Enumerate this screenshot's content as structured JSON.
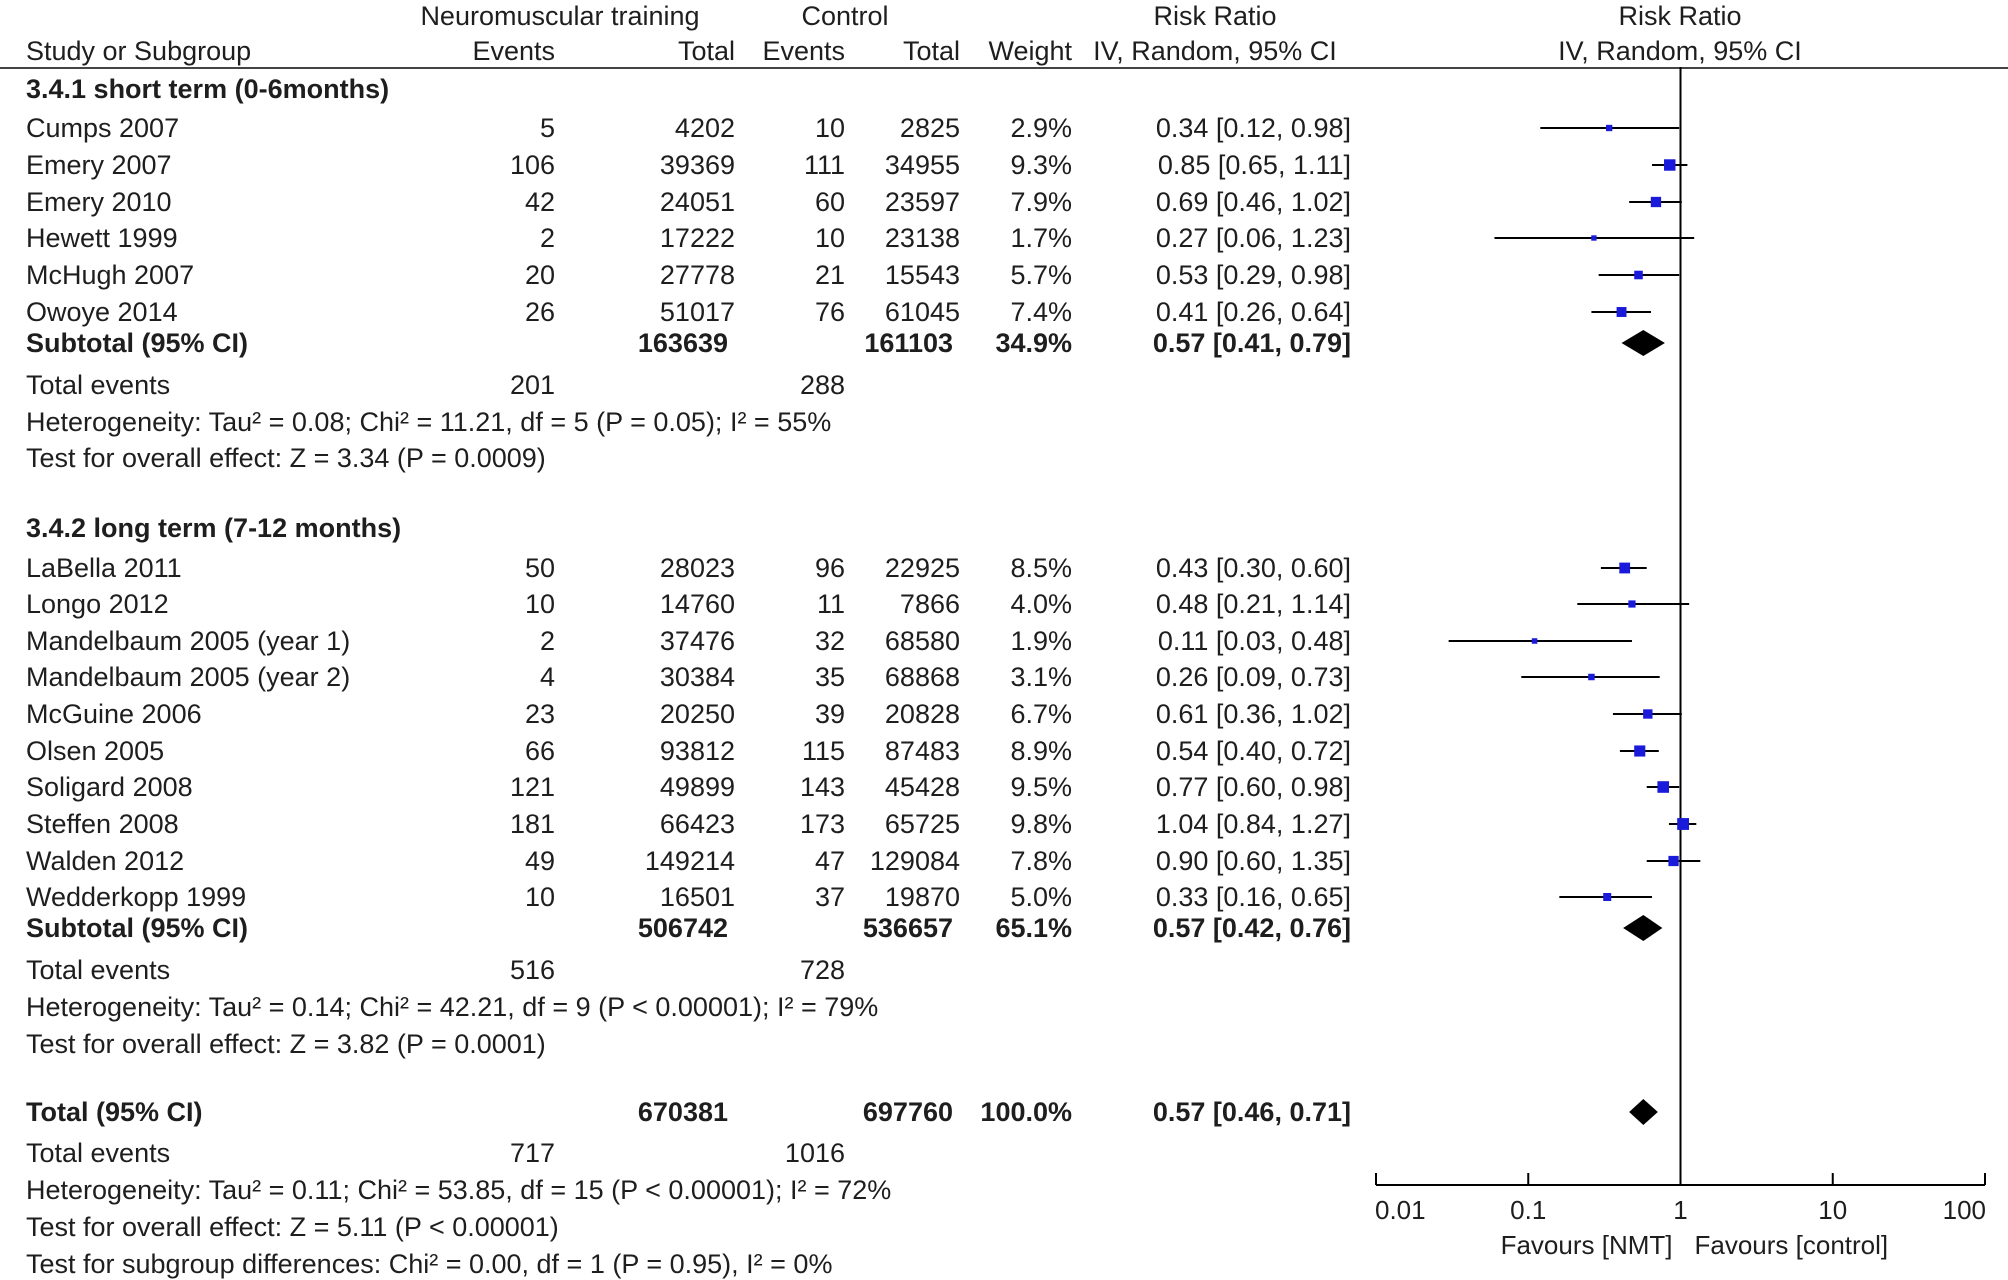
{
  "header": {
    "nmt_group": "Neuromuscular training",
    "control_group": "Control",
    "rr_left": "Risk Ratio",
    "rr_right": "Risk Ratio",
    "study_col": "Study or Subgroup",
    "events": "Events",
    "total": "Total",
    "events2": "Events",
    "total2": "Total",
    "weight": "Weight",
    "method_left": "IV, Random, 95% CI",
    "method_right": "IV, Random, 95% CI"
  },
  "subgroups": [
    {
      "title": "3.4.1 short term (0-6months)",
      "studies": [
        {
          "name": "Cumps 2007",
          "e1": "5",
          "n1": "4202",
          "e2": "10",
          "n2": "2825",
          "weight": "2.9%",
          "ci_text": "0.34 [0.12, 0.98]"
        },
        {
          "name": "Emery 2007",
          "e1": "106",
          "n1": "39369",
          "e2": "111",
          "n2": "34955",
          "weight": "9.3%",
          "ci_text": "0.85 [0.65, 1.11]"
        },
        {
          "name": "Emery 2010",
          "e1": "42",
          "n1": "24051",
          "e2": "60",
          "n2": "23597",
          "weight": "7.9%",
          "ci_text": "0.69 [0.46, 1.02]"
        },
        {
          "name": "Hewett 1999",
          "e1": "2",
          "n1": "17222",
          "e2": "10",
          "n2": "23138",
          "weight": "1.7%",
          "ci_text": "0.27 [0.06, 1.23]"
        },
        {
          "name": "McHugh 2007",
          "e1": "20",
          "n1": "27778",
          "e2": "21",
          "n2": "15543",
          "weight": "5.7%",
          "ci_text": "0.53 [0.29, 0.98]"
        },
        {
          "name": "Owoye 2014",
          "e1": "26",
          "n1": "51017",
          "e2": "76",
          "n2": "61045",
          "weight": "7.4%",
          "ci_text": "0.41 [0.26, 0.64]"
        }
      ],
      "subtotal": {
        "label": "Subtotal (95% CI)",
        "n1": "163639",
        "n2": "161103",
        "weight": "34.9%",
        "ci_text": "0.57 [0.41, 0.79]"
      },
      "total_events": {
        "label": "Total events",
        "e1": "201",
        "e2": "288"
      },
      "heterogeneity": "Heterogeneity: Tau² = 0.08; Chi² = 11.21, df = 5 (P = 0.05); I² = 55%",
      "overall_effect": "Test for overall effect: Z = 3.34 (P = 0.0009)"
    },
    {
      "title": "3.4.2 long term (7-12 months)",
      "studies": [
        {
          "name": "LaBella 2011",
          "e1": "50",
          "n1": "28023",
          "e2": "96",
          "n2": "22925",
          "weight": "8.5%",
          "ci_text": "0.43 [0.30, 0.60]"
        },
        {
          "name": "Longo 2012",
          "e1": "10",
          "n1": "14760",
          "e2": "11",
          "n2": "7866",
          "weight": "4.0%",
          "ci_text": "0.48 [0.21, 1.14]"
        },
        {
          "name": "Mandelbaum 2005 (year 1)",
          "e1": "2",
          "n1": "37476",
          "e2": "32",
          "n2": "68580",
          "weight": "1.9%",
          "ci_text": "0.11 [0.03, 0.48]"
        },
        {
          "name": "Mandelbaum 2005 (year 2)",
          "e1": "4",
          "n1": "30384",
          "e2": "35",
          "n2": "68868",
          "weight": "3.1%",
          "ci_text": "0.26 [0.09, 0.73]"
        },
        {
          "name": "McGuine 2006",
          "e1": "23",
          "n1": "20250",
          "e2": "39",
          "n2": "20828",
          "weight": "6.7%",
          "ci_text": "0.61 [0.36, 1.02]"
        },
        {
          "name": "Olsen 2005",
          "e1": "66",
          "n1": "93812",
          "e2": "115",
          "n2": "87483",
          "weight": "8.9%",
          "ci_text": "0.54 [0.40, 0.72]"
        },
        {
          "name": "Soligard 2008",
          "e1": "121",
          "n1": "49899",
          "e2": "143",
          "n2": "45428",
          "weight": "9.5%",
          "ci_text": "0.77 [0.60, 0.98]"
        },
        {
          "name": "Steffen 2008",
          "e1": "181",
          "n1": "66423",
          "e2": "173",
          "n2": "65725",
          "weight": "9.8%",
          "ci_text": "1.04 [0.84, 1.27]"
        },
        {
          "name": "Walden 2012",
          "e1": "49",
          "n1": "149214",
          "e2": "47",
          "n2": "129084",
          "weight": "7.8%",
          "ci_text": "0.90 [0.60, 1.35]"
        },
        {
          "name": "Wedderkopp 1999",
          "e1": "10",
          "n1": "16501",
          "e2": "37",
          "n2": "19870",
          "weight": "5.0%",
          "ci_text": "0.33 [0.16, 0.65]"
        }
      ],
      "subtotal": {
        "label": "Subtotal (95% CI)",
        "n1": "506742",
        "n2": "536657",
        "weight": "65.1%",
        "ci_text": "0.57 [0.42, 0.76]"
      },
      "total_events": {
        "label": "Total events",
        "e1": "516",
        "e2": "728"
      },
      "heterogeneity": "Heterogeneity: Tau² = 0.14; Chi² = 42.21, df = 9 (P < 0.00001); I² = 79%",
      "overall_effect": "Test for overall effect: Z = 3.82 (P = 0.0001)"
    }
  ],
  "total": {
    "label": "Total (95% CI)",
    "n1": "670381",
    "n2": "697760",
    "weight": "100.0%",
    "ci_text": "0.57 [0.46, 0.71]",
    "total_events": {
      "label": "Total events",
      "e1": "717",
      "e2": "1016"
    },
    "heterogeneity": "Heterogeneity: Tau² = 0.11; Chi² = 53.85, df = 15 (P < 0.00001); I² = 72%",
    "overall_effect": "Test for overall effect: Z = 5.11 (P < 0.00001)",
    "subgroup_diff": "Test for subgroup differences: Chi² = 0.00, df = 1 (P = 0.95), I² = 0%"
  },
  "chart_data": {
    "type": "forest",
    "title": "Risk Ratio",
    "subtitle": "IV, Random, 95% CI",
    "scale": "log",
    "xlim": [
      0.01,
      100
    ],
    "ticks": [
      0.01,
      0.1,
      1,
      10,
      100
    ],
    "tick_labels": [
      "0.01",
      "0.1",
      "1",
      "10",
      "100"
    ],
    "reference_line": 1,
    "left_label": "Favours [NMT]",
    "right_label": "Favours [control]",
    "colors": {
      "point": "#1a1adb",
      "line": "#000000",
      "diamond": "#000000"
    },
    "studies": [
      {
        "name": "Cumps 2007",
        "rr": 0.34,
        "lo": 0.12,
        "hi": 0.98,
        "weight": 2.9
      },
      {
        "name": "Emery 2007",
        "rr": 0.85,
        "lo": 0.65,
        "hi": 1.11,
        "weight": 9.3
      },
      {
        "name": "Emery 2010",
        "rr": 0.69,
        "lo": 0.46,
        "hi": 1.02,
        "weight": 7.9
      },
      {
        "name": "Hewett 1999",
        "rr": 0.27,
        "lo": 0.06,
        "hi": 1.23,
        "weight": 1.7
      },
      {
        "name": "McHugh 2007",
        "rr": 0.53,
        "lo": 0.29,
        "hi": 0.98,
        "weight": 5.7
      },
      {
        "name": "Owoye 2014",
        "rr": 0.41,
        "lo": 0.26,
        "hi": 0.64,
        "weight": 7.4
      },
      {
        "name": "LaBella 2011",
        "rr": 0.43,
        "lo": 0.3,
        "hi": 0.6,
        "weight": 8.5
      },
      {
        "name": "Longo 2012",
        "rr": 0.48,
        "lo": 0.21,
        "hi": 1.14,
        "weight": 4.0
      },
      {
        "name": "Mandelbaum 2005 (year 1)",
        "rr": 0.11,
        "lo": 0.03,
        "hi": 0.48,
        "weight": 1.9
      },
      {
        "name": "Mandelbaum 2005 (year 2)",
        "rr": 0.26,
        "lo": 0.09,
        "hi": 0.73,
        "weight": 3.1
      },
      {
        "name": "McGuine 2006",
        "rr": 0.61,
        "lo": 0.36,
        "hi": 1.02,
        "weight": 6.7
      },
      {
        "name": "Olsen 2005",
        "rr": 0.54,
        "lo": 0.4,
        "hi": 0.72,
        "weight": 8.9
      },
      {
        "name": "Soligard 2008",
        "rr": 0.77,
        "lo": 0.6,
        "hi": 0.98,
        "weight": 9.5
      },
      {
        "name": "Steffen 2008",
        "rr": 1.04,
        "lo": 0.84,
        "hi": 1.27,
        "weight": 9.8
      },
      {
        "name": "Walden 2012",
        "rr": 0.9,
        "lo": 0.6,
        "hi": 1.35,
        "weight": 7.8
      },
      {
        "name": "Wedderkopp 1999",
        "rr": 0.33,
        "lo": 0.16,
        "hi": 0.65,
        "weight": 5.0
      }
    ],
    "pooled": [
      {
        "name": "Subtotal 3.4.1",
        "rr": 0.57,
        "lo": 0.41,
        "hi": 0.79
      },
      {
        "name": "Subtotal 3.4.2",
        "rr": 0.57,
        "lo": 0.42,
        "hi": 0.76
      },
      {
        "name": "Total",
        "rr": 0.57,
        "lo": 0.46,
        "hi": 0.71
      }
    ]
  }
}
